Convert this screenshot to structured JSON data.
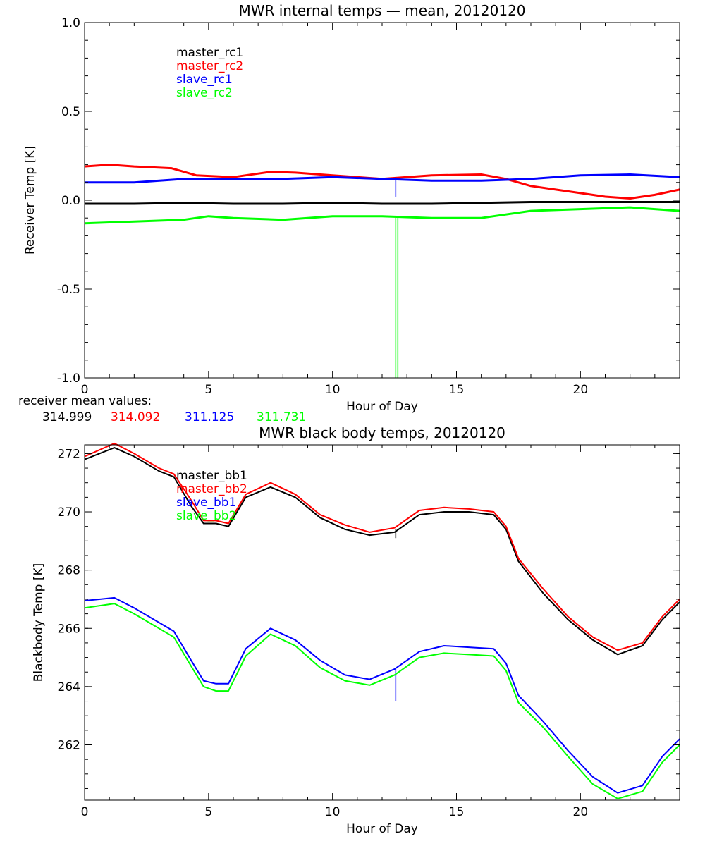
{
  "chart_data": [
    {
      "type": "line",
      "title": "MWR internal temps — mean, 20120120",
      "xlabel": "Hour of Day",
      "ylabel": "Receiver Temp [K]",
      "xlim": [
        0,
        24
      ],
      "ylim": [
        -1.0,
        1.0
      ],
      "x_ticks": [
        0,
        5,
        10,
        15,
        20
      ],
      "y_ticks": [
        -1.0,
        -0.5,
        0.0,
        0.5,
        1.0
      ],
      "y_tick_labels": [
        "-1.0",
        "-0.5",
        "0.0",
        "0.5",
        "1.0"
      ],
      "legend": [
        "master_rc1",
        "master_rc2",
        "slave_rc1",
        "slave_rc2"
      ],
      "legend_position": "top-left",
      "series": [
        {
          "name": "master_rc1",
          "color": "#000000",
          "x": [
            0,
            2,
            4,
            6,
            8,
            10,
            12,
            14,
            16,
            18,
            20,
            22,
            24
          ],
          "values": [
            -0.02,
            -0.02,
            -0.015,
            -0.02,
            -0.02,
            -0.015,
            -0.02,
            -0.02,
            -0.015,
            -0.01,
            -0.01,
            -0.01,
            -0.01
          ]
        },
        {
          "name": "master_rc2",
          "color": "#ff0000",
          "x": [
            0,
            1,
            2,
            3.5,
            4.5,
            6,
            7.5,
            8.5,
            10,
            12,
            14,
            16,
            17,
            18,
            19,
            20,
            21,
            22,
            23,
            24
          ],
          "values": [
            0.19,
            0.2,
            0.19,
            0.18,
            0.14,
            0.13,
            0.16,
            0.155,
            0.14,
            0.12,
            0.14,
            0.145,
            0.12,
            0.08,
            0.06,
            0.04,
            0.02,
            0.01,
            0.03,
            0.06
          ]
        },
        {
          "name": "slave_rc1",
          "color": "#0000ff",
          "x": [
            0,
            2,
            4,
            6,
            8,
            10,
            12,
            14,
            16,
            18,
            20,
            22,
            24
          ],
          "values": [
            0.1,
            0.1,
            0.12,
            0.12,
            0.12,
            0.13,
            0.12,
            0.11,
            0.11,
            0.12,
            0.14,
            0.145,
            0.13
          ],
          "spike": {
            "x": 12.55,
            "values": [
              0.13,
              0.02
            ]
          }
        },
        {
          "name": "slave_rc2",
          "color": "#00ff00",
          "x": [
            0,
            2,
            4,
            5,
            6,
            8,
            10,
            12,
            14,
            16,
            18,
            20,
            22,
            24
          ],
          "values": [
            -0.13,
            -0.12,
            -0.11,
            -0.09,
            -0.1,
            -0.11,
            -0.09,
            -0.09,
            -0.1,
            -0.1,
            -0.06,
            -0.05,
            -0.04,
            -0.06
          ],
          "spike": {
            "x": 12.55,
            "values": [
              -0.09,
              -1.0
            ]
          }
        }
      ],
      "mean_values_label": "receiver mean values:",
      "mean_values": [
        {
          "text": "314.999",
          "color": "#000000"
        },
        {
          "text": "314.092",
          "color": "#ff0000"
        },
        {
          "text": "311.125",
          "color": "#0000ff"
        },
        {
          "text": "311.731",
          "color": "#00ff00"
        }
      ]
    },
    {
      "type": "line",
      "title": "MWR black body temps, 20120120",
      "xlabel": "Hour of Day",
      "ylabel": "Blackbody Temp [K]",
      "xlim": [
        0,
        24
      ],
      "ylim": [
        260.1,
        272.3
      ],
      "x_ticks": [
        0,
        5,
        10,
        15,
        20
      ],
      "y_ticks": [
        262,
        264,
        266,
        268,
        270,
        272
      ],
      "y_tick_labels": [
        "262",
        "264",
        "266",
        "268",
        "270",
        "272"
      ],
      "legend": [
        "master_bb1",
        "master_bb2",
        "slave_bb1",
        "slave_bb2"
      ],
      "legend_position": "top-left",
      "series": [
        {
          "name": "master_bb1",
          "color": "#000000",
          "x": [
            0,
            1.2,
            2,
            3,
            3.6,
            4.3,
            4.8,
            5.3,
            5.8,
            6.5,
            7.5,
            8.5,
            9.5,
            10.5,
            11.5,
            12.5,
            13.5,
            14.5,
            15.5,
            16.5,
            17,
            17.5,
            18.5,
            19.5,
            20.5,
            21.5,
            22.5,
            23.3,
            24
          ],
          "values": [
            271.8,
            272.2,
            271.9,
            271.4,
            271.2,
            270.2,
            269.6,
            269.6,
            269.5,
            270.5,
            270.85,
            270.5,
            269.8,
            269.4,
            269.2,
            269.3,
            269.9,
            270.0,
            270.0,
            269.9,
            269.4,
            268.3,
            267.2,
            266.3,
            265.6,
            265.1,
            265.4,
            266.3,
            266.9
          ],
          "spike": {
            "x": 12.55,
            "values": [
              269.4,
              269.1
            ]
          }
        },
        {
          "name": "master_bb2",
          "color": "#ff0000",
          "x": [
            0,
            1.2,
            2,
            3,
            3.6,
            4.3,
            4.8,
            5.3,
            5.8,
            6.5,
            7.5,
            8.5,
            9.5,
            10.5,
            11.5,
            12.5,
            13.5,
            14.5,
            15.5,
            16.5,
            17,
            17.5,
            18.5,
            19.5,
            20.5,
            21.5,
            22.5,
            23.3,
            24
          ],
          "values": [
            271.9,
            272.35,
            272.0,
            271.5,
            271.3,
            270.4,
            269.7,
            269.7,
            269.6,
            270.6,
            271.0,
            270.6,
            269.9,
            269.55,
            269.3,
            269.45,
            270.05,
            270.15,
            270.1,
            270.0,
            269.5,
            268.4,
            267.35,
            266.4,
            265.7,
            265.25,
            265.5,
            266.4,
            267.0
          ]
        },
        {
          "name": "slave_bb1",
          "color": "#0000ff",
          "x": [
            0,
            1.2,
            2,
            3,
            3.6,
            4.3,
            4.8,
            5.3,
            5.8,
            6.5,
            7.5,
            8.5,
            9.5,
            10.5,
            11.5,
            12.5,
            13.5,
            14.5,
            15.5,
            16.5,
            17,
            17.5,
            18.5,
            19.5,
            20.5,
            21.5,
            22.5,
            23.3,
            24
          ],
          "values": [
            266.95,
            267.05,
            266.7,
            266.2,
            265.9,
            264.9,
            264.2,
            264.1,
            264.1,
            265.3,
            266.0,
            265.6,
            264.9,
            264.4,
            264.25,
            264.6,
            265.2,
            265.4,
            265.35,
            265.3,
            264.8,
            263.7,
            262.8,
            261.8,
            260.9,
            260.35,
            260.6,
            261.6,
            262.2
          ],
          "spike": {
            "x": 12.55,
            "values": [
              264.6,
              263.5
            ]
          }
        },
        {
          "name": "slave_bb2",
          "color": "#00ff00",
          "x": [
            0,
            1.2,
            2,
            3,
            3.6,
            4.3,
            4.8,
            5.3,
            5.8,
            6.5,
            7.5,
            8.5,
            9.5,
            10.5,
            11.5,
            12.5,
            13.5,
            14.5,
            15.5,
            16.5,
            17,
            17.5,
            18.5,
            19.5,
            20.5,
            21.5,
            22.5,
            23.3,
            24
          ],
          "values": [
            266.7,
            266.85,
            266.5,
            266.0,
            265.7,
            264.7,
            264.0,
            263.85,
            263.85,
            265.05,
            265.8,
            265.4,
            264.65,
            264.2,
            264.05,
            264.4,
            265.0,
            265.15,
            265.1,
            265.05,
            264.55,
            263.45,
            262.6,
            261.6,
            260.65,
            260.15,
            260.4,
            261.4,
            262.0
          ]
        }
      ]
    }
  ]
}
